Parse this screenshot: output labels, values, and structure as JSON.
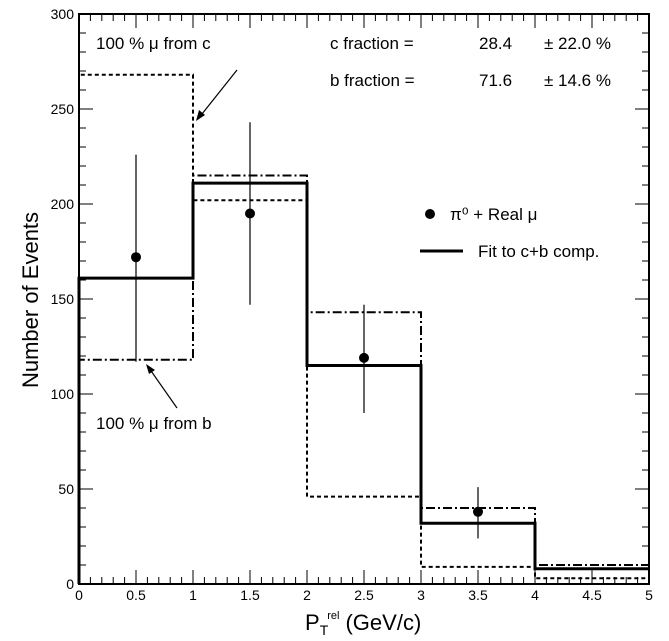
{
  "chart_data": {
    "type": "bar",
    "xlabel_main": "P",
    "xlabel_sub": "T",
    "xlabel_sup": "rel",
    "xlabel_unit": "(GeV/c)",
    "ylabel": "Number of Events",
    "xlim": [
      0,
      5
    ],
    "ylim": [
      0,
      300
    ],
    "x_ticks": [
      "0",
      "0.5",
      "1",
      "1.5",
      "2",
      "2.5",
      "3",
      "3.5",
      "4",
      "4.5",
      "5"
    ],
    "y_ticks": [
      "0",
      "50",
      "100",
      "150",
      "200",
      "250",
      "300"
    ],
    "bin_edges": [
      0,
      1,
      2,
      3,
      4,
      5
    ],
    "data_points": {
      "name": "π⁰ + Real μ",
      "x": [
        0.5,
        1.5,
        2.5,
        3.5
      ],
      "y": [
        172,
        195,
        119,
        38
      ],
      "yerr_low": [
        55,
        48,
        29,
        14
      ],
      "yerr_high": [
        54,
        48,
        28,
        13
      ]
    },
    "series": [
      {
        "name": "Fit to c+b comp.",
        "style": "solid",
        "values": [
          161,
          211,
          115,
          32,
          8
        ]
      },
      {
        "style": "dotted",
        "values": [
          268,
          202,
          46,
          9,
          3
        ]
      },
      {
        "style": "dashdot",
        "values": [
          118,
          215,
          143,
          40,
          10
        ]
      }
    ],
    "annotations": {
      "c_fraction_label": "c fraction =",
      "c_fraction_value": "28.4",
      "c_fraction_error": "± 22.0 %",
      "b_fraction_label": "b fraction =",
      "b_fraction_value": "71.6",
      "b_fraction_error": "± 14.6 %",
      "mu_from_c": "100 % μ from c",
      "mu_from_b": "100 % μ from b"
    },
    "legend": {
      "points_label": "π⁰ + Real μ",
      "fit_label": "Fit to c+b comp."
    }
  }
}
